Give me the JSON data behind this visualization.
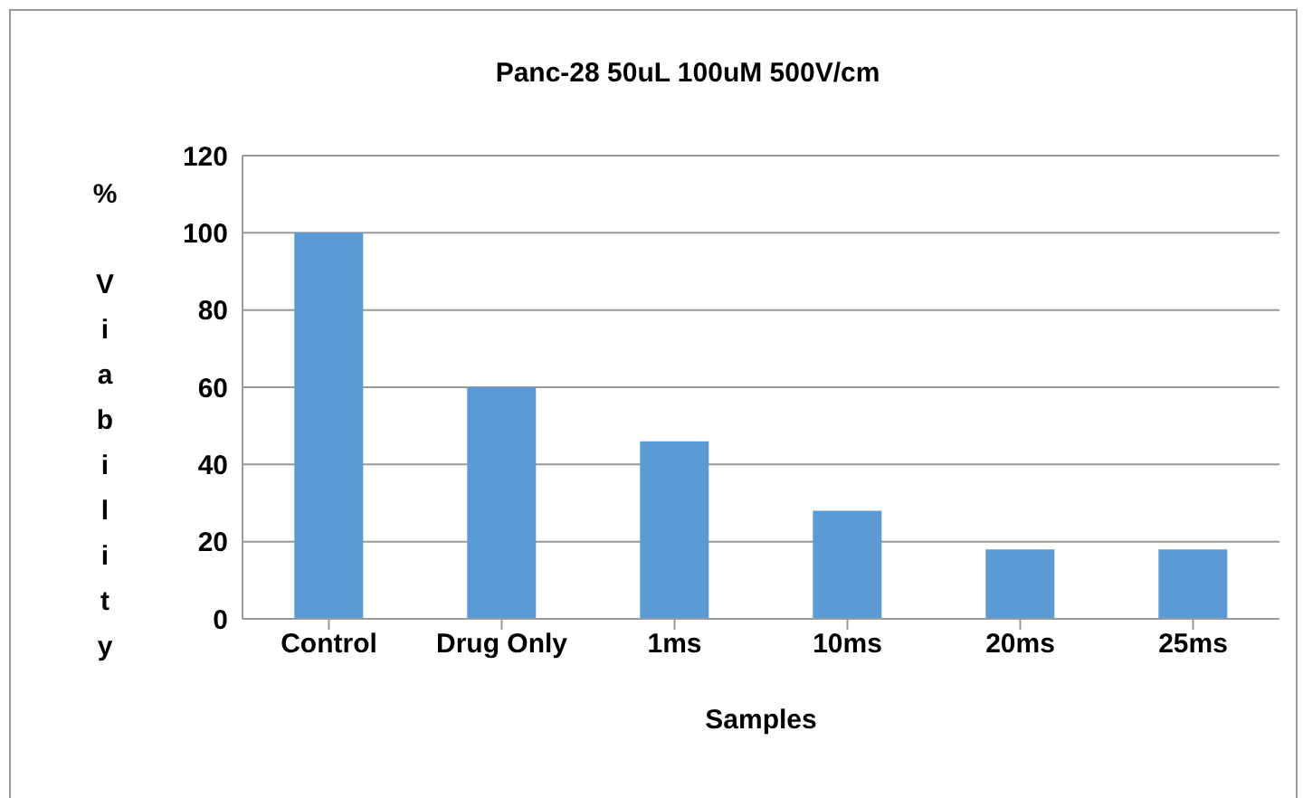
{
  "chart_data": {
    "type": "bar",
    "title": "Panc-28 50uL 100uM 500V/cm",
    "xlabel": "Samples",
    "ylabel": "% Viability",
    "categories": [
      "Control",
      "Drug Only",
      "1ms",
      "10ms",
      "20ms",
      "25ms"
    ],
    "values": [
      100,
      60,
      46,
      28,
      18,
      18
    ],
    "color": "#5b9bd5",
    "ylim": [
      0,
      120
    ],
    "yticks": [
      0,
      20,
      40,
      60,
      80,
      100,
      120
    ],
    "grid": "y"
  }
}
